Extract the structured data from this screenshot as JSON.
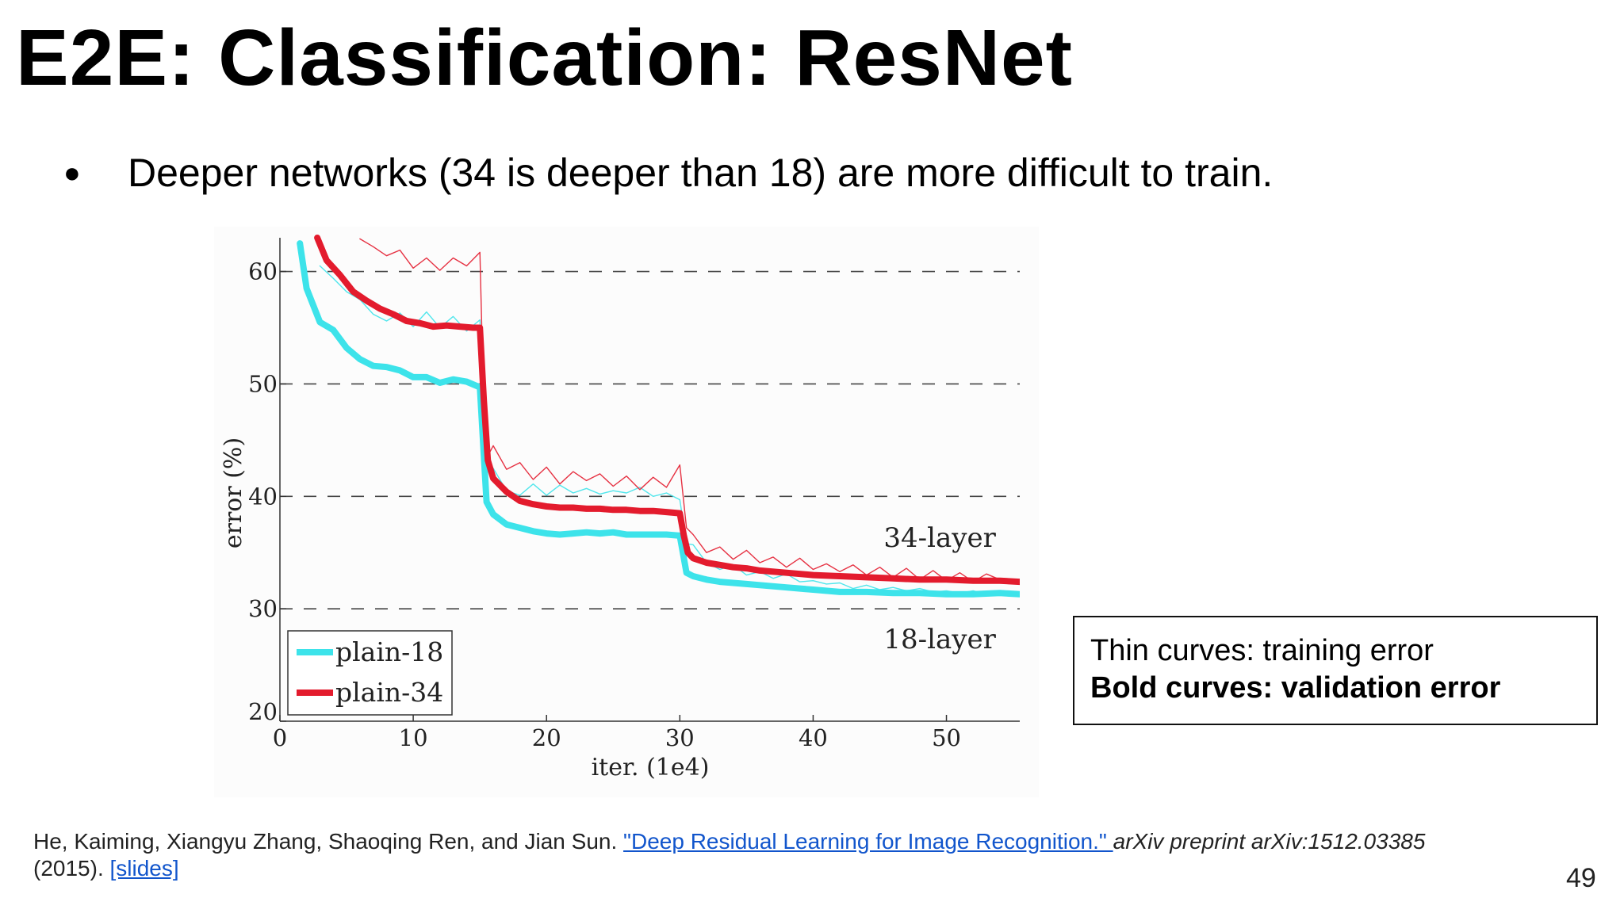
{
  "slide": {
    "title": "E2E: Classification: ResNet",
    "bullet": "Deeper networks (34 is deeper than 18) are more difficult to train.",
    "bullet_marker": "●",
    "note_box": {
      "line1": "Thin curves: training error",
      "line2": "Bold curves: validation error"
    },
    "citation": {
      "authors": "He, Kaiming, Xiangyu Zhang, Shaoqing Ren, and Jian Sun. ",
      "paper_title": "\"Deep Residual Learning for Image Recognition.\" ",
      "venue": "arXiv preprint arXiv:1512.03385",
      "year": "(2015). ",
      "slides_link": "[slides]"
    },
    "page_number": "49"
  },
  "chart_data": {
    "type": "line",
    "xlabel": "iter. (1e4)",
    "ylabel": "error (%)",
    "xlim": [
      0,
      55.5
    ],
    "ylim": [
      20,
      63
    ],
    "xticks": [
      0,
      10,
      20,
      30,
      40,
      50
    ],
    "yticks": [
      20,
      30,
      40,
      50,
      60
    ],
    "grid": "dashed horizontal at 30, 40, 50, 60",
    "legend": {
      "position": "bottom-left",
      "entries": [
        "plain-18",
        "plain-34"
      ]
    },
    "annotations": [
      {
        "text": "34-layer",
        "x": 49.5,
        "y": 35.5,
        "series": "plain-34"
      },
      {
        "text": "18-layer",
        "x": 49.5,
        "y": 26.5,
        "series": "plain-18"
      }
    ],
    "colors": {
      "plain-18": "#3de3ea",
      "plain-34": "#e31b2d"
    },
    "series": [
      {
        "name": "plain-18",
        "kind": "validation",
        "x": [
          1.5,
          2,
          3,
          4,
          5,
          6,
          7,
          8,
          9,
          10,
          11,
          12,
          13,
          14,
          15,
          15.5,
          16,
          17,
          18,
          19,
          20,
          21,
          22,
          23,
          24,
          25,
          26,
          27,
          28,
          29,
          30,
          30.5,
          31,
          32,
          33,
          34,
          35,
          36,
          38,
          40,
          42,
          44,
          46,
          48,
          50,
          52,
          54,
          55.5
        ],
        "y": [
          62.5,
          58.5,
          55.5,
          54.8,
          53.2,
          52.2,
          51.6,
          51.5,
          51.2,
          50.6,
          50.6,
          50.1,
          50.4,
          50.2,
          49.7,
          39.5,
          38.4,
          37.5,
          37.2,
          36.9,
          36.7,
          36.6,
          36.7,
          36.8,
          36.7,
          36.8,
          36.6,
          36.6,
          36.6,
          36.6,
          36.5,
          33.2,
          32.9,
          32.6,
          32.4,
          32.3,
          32.2,
          32.1,
          31.9,
          31.7,
          31.5,
          31.5,
          31.4,
          31.4,
          31.3,
          31.3,
          31.4,
          31.3
        ]
      },
      {
        "name": "plain-18",
        "kind": "training",
        "x": [
          3,
          4,
          5,
          6,
          7,
          8,
          9,
          10,
          11,
          12,
          13,
          14,
          15,
          15.5,
          16,
          17,
          18,
          19,
          20,
          21,
          22,
          23,
          24,
          25,
          26,
          27,
          28,
          29,
          30,
          30.5,
          31,
          32,
          33,
          34,
          35,
          36,
          37,
          38,
          39,
          40,
          41,
          42,
          43,
          44,
          45,
          46,
          47,
          48,
          49,
          50,
          51,
          52,
          53,
          54,
          55
        ],
        "y": [
          60.5,
          59.4,
          58.2,
          57.5,
          56.2,
          55.6,
          56.3,
          55.1,
          56.4,
          55.0,
          56.0,
          54.7,
          55.7,
          42.1,
          42.5,
          40.5,
          40.1,
          41.1,
          40.1,
          41.0,
          40.3,
          40.7,
          40.2,
          40.5,
          40.3,
          40.8,
          40.0,
          40.3,
          39.7,
          35.8,
          35.7,
          34.1,
          33.5,
          33.9,
          33.0,
          33.3,
          32.7,
          33.1,
          32.4,
          32.5,
          32.2,
          32.3,
          31.8,
          32.1,
          31.7,
          31.9,
          31.6,
          31.8,
          31.5,
          31.6,
          31.4,
          31.6,
          31.3,
          31.4,
          31.2
        ]
      },
      {
        "name": "plain-34",
        "kind": "validation",
        "x": [
          2.8,
          3.5,
          4.5,
          5.5,
          6.5,
          7.5,
          8.5,
          9.5,
          10.5,
          11.5,
          12.5,
          13.5,
          14.5,
          15,
          15.3,
          15.6,
          16,
          17,
          18,
          19,
          20,
          21,
          22,
          23,
          24,
          25,
          26,
          27,
          28,
          29,
          30,
          30.3,
          30.6,
          31,
          32,
          33,
          34,
          35,
          36,
          38,
          40,
          42,
          44,
          46,
          48,
          50,
          52,
          54,
          55.5
        ],
        "y": [
          63,
          61.0,
          59.7,
          58.2,
          57.4,
          56.7,
          56.2,
          55.6,
          55.4,
          55.1,
          55.2,
          55.1,
          55.0,
          55.0,
          48.5,
          43.2,
          41.6,
          40.4,
          39.6,
          39.3,
          39.1,
          39.0,
          39.0,
          38.9,
          38.9,
          38.8,
          38.8,
          38.7,
          38.7,
          38.6,
          38.5,
          36.5,
          35.0,
          34.5,
          34.1,
          33.9,
          33.7,
          33.6,
          33.4,
          33.2,
          33.0,
          32.9,
          32.8,
          32.7,
          32.6,
          32.6,
          32.5,
          32.5,
          32.4
        ]
      },
      {
        "name": "plain-34",
        "kind": "training",
        "x": [
          6,
          7,
          8,
          9,
          10,
          11,
          12,
          13,
          14,
          15,
          15.3,
          15.6,
          16,
          17,
          18,
          19,
          20,
          21,
          22,
          23,
          24,
          25,
          26,
          27,
          28,
          29,
          30,
          30.5,
          31,
          32,
          33,
          34,
          35,
          36,
          37,
          38,
          39,
          40,
          41,
          42,
          43,
          44,
          45,
          46,
          47,
          48,
          49,
          50,
          51,
          52,
          53,
          54,
          55
        ],
        "y": [
          62.9,
          62.2,
          61.4,
          61.9,
          60.3,
          61.2,
          60.1,
          61.2,
          60.5,
          61.7,
          47.5,
          43.6,
          44.5,
          42.4,
          43.0,
          41.5,
          42.6,
          41.1,
          42.2,
          41.4,
          42.0,
          40.9,
          41.8,
          40.6,
          41.7,
          40.8,
          42.8,
          37.2,
          36.6,
          35.0,
          35.5,
          34.4,
          35.2,
          34.1,
          34.6,
          33.7,
          34.5,
          33.5,
          34.0,
          33.3,
          33.9,
          33.0,
          33.7,
          32.8,
          33.6,
          32.6,
          33.4,
          32.5,
          33.2,
          32.4,
          33.1,
          32.6,
          32.5
        ]
      }
    ]
  }
}
